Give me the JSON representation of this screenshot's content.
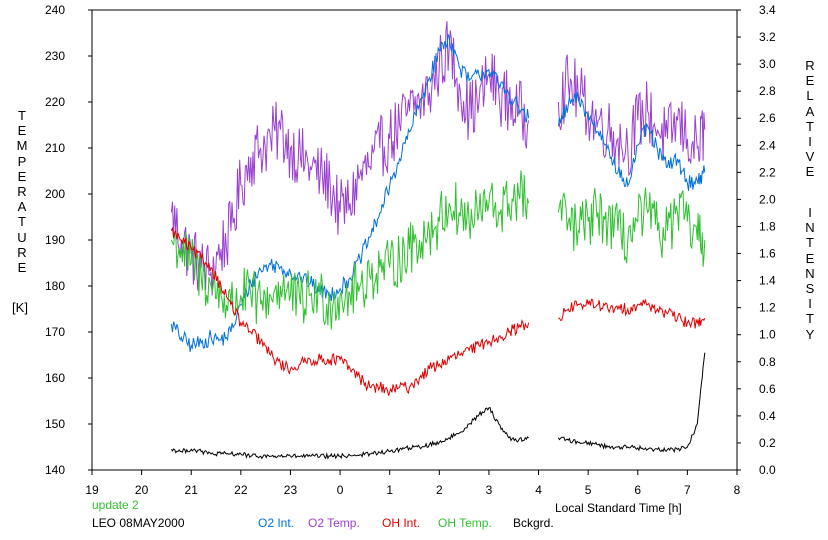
{
  "chart_data": {
    "type": "line",
    "left_axis": {
      "title_letters": [
        "T",
        "E",
        "M",
        "P",
        "E",
        "R",
        "A",
        "T",
        "U",
        "R",
        "E"
      ],
      "unit": "[K]",
      "ticks": [
        140,
        150,
        160,
        170,
        180,
        190,
        200,
        210,
        220,
        230,
        240
      ],
      "range": [
        140,
        240
      ]
    },
    "right_axis": {
      "title_word1": [
        "R",
        "E",
        "L",
        "A",
        "T",
        "I",
        "V",
        "E"
      ],
      "title_word2": [
        "I",
        "N",
        "T",
        "E",
        "N",
        "S",
        "I",
        "T",
        "Y"
      ],
      "ticks": [
        "0.0",
        "0.2",
        "0.4",
        "0.6",
        "0.8",
        "1.0",
        "1.2",
        "1.4",
        "1.6",
        "1.8",
        "2.0",
        "2.2",
        "2.4",
        "2.6",
        "2.8",
        "3.0",
        "3.2",
        "3.4"
      ],
      "range": [
        0.0,
        3.4
      ]
    },
    "x_axis": {
      "label": "Local Standard Time [h]",
      "ticks": [
        "19",
        "20",
        "21",
        "22",
        "23",
        "0",
        "1",
        "2",
        "3",
        "4",
        "5",
        "6",
        "7",
        "8"
      ],
      "range_hours_since_19": [
        0,
        13
      ]
    },
    "legend": [
      {
        "name": "O2 Int.",
        "color": "#0070e0"
      },
      {
        "name": "O2 Temp.",
        "color": "#9a40d0"
      },
      {
        "name": "OH Int.",
        "color": "#e00000"
      },
      {
        "name": "OH Temp.",
        "color": "#30c030"
      },
      {
        "name": "Bckgrd.",
        "color": "#000000"
      }
    ],
    "annotations": {
      "update": "update 2",
      "station": "LEO 08MAY2000"
    },
    "series": [
      {
        "name": "O2 Temp.",
        "axis": "left",
        "color": "#9a40d0",
        "x": [
          20.6,
          20.8,
          21.0,
          21.2,
          21.4,
          21.6,
          21.8,
          22.0,
          22.2,
          22.4,
          22.6,
          22.8,
          23.0,
          23.2,
          23.4,
          23.6,
          23.8,
          24.0,
          24.2,
          24.4,
          24.6,
          24.8,
          25.0,
          25.2,
          25.4,
          25.6,
          25.8,
          26.0,
          26.2,
          26.4,
          26.6,
          26.8,
          27.0,
          27.2,
          27.4,
          27.6,
          27.8,
          null,
          28.4,
          28.6,
          28.8,
          29.0,
          29.2,
          29.4,
          29.6,
          29.8,
          30.0,
          30.2,
          30.4,
          30.6,
          30.8,
          31.0,
          31.2,
          31.35
        ],
        "y": [
          196,
          190,
          187,
          184,
          183,
          188,
          192,
          202,
          208,
          210,
          212,
          214,
          210,
          208,
          206,
          204,
          202,
          196,
          198,
          204,
          206,
          210,
          212,
          215,
          218,
          220,
          222,
          228,
          232,
          224,
          218,
          220,
          226,
          222,
          220,
          218,
          216,
          null,
          220,
          224,
          222,
          218,
          216,
          214,
          212,
          210,
          216,
          218,
          214,
          212,
          216,
          212,
          210,
          214
        ]
      },
      {
        "name": "O2 Int.",
        "axis": "right",
        "color": "#0070e0",
        "x": [
          20.6,
          20.8,
          21.0,
          21.2,
          21.4,
          21.6,
          21.8,
          22.0,
          22.2,
          22.4,
          22.6,
          22.8,
          23.0,
          23.2,
          23.4,
          23.6,
          23.8,
          24.0,
          24.2,
          24.4,
          24.6,
          24.8,
          25.0,
          25.2,
          25.4,
          25.6,
          25.8,
          26.0,
          26.2,
          26.4,
          26.6,
          26.8,
          27.0,
          27.2,
          27.4,
          27.6,
          27.8,
          null,
          28.4,
          28.6,
          28.8,
          29.0,
          29.2,
          29.4,
          29.6,
          29.8,
          30.0,
          30.2,
          30.4,
          30.6,
          30.8,
          31.0,
          31.2,
          31.35
        ],
        "y": [
          1.08,
          0.98,
          0.92,
          0.94,
          0.98,
          0.96,
          1.02,
          1.22,
          1.38,
          1.48,
          1.52,
          1.5,
          1.46,
          1.42,
          1.38,
          1.32,
          1.3,
          1.34,
          1.42,
          1.56,
          1.72,
          1.9,
          2.1,
          2.3,
          2.5,
          2.7,
          2.9,
          3.1,
          3.2,
          2.98,
          2.88,
          2.92,
          2.96,
          2.85,
          2.78,
          2.68,
          2.6,
          null,
          2.54,
          2.7,
          2.74,
          2.62,
          2.5,
          2.4,
          2.2,
          2.1,
          2.4,
          2.54,
          2.36,
          2.24,
          2.3,
          2.12,
          2.14,
          2.2
        ]
      },
      {
        "name": "OH Temp.",
        "axis": "left",
        "color": "#30c030",
        "x": [
          20.6,
          20.8,
          21.0,
          21.2,
          21.4,
          21.6,
          21.8,
          22.0,
          22.2,
          22.4,
          22.6,
          22.8,
          23.0,
          23.2,
          23.4,
          23.6,
          23.8,
          24.0,
          24.2,
          24.4,
          24.6,
          24.8,
          25.0,
          25.2,
          25.4,
          25.6,
          25.8,
          26.0,
          26.2,
          26.4,
          26.6,
          26.8,
          27.0,
          27.2,
          27.4,
          27.6,
          27.8,
          null,
          28.4,
          28.6,
          28.8,
          29.0,
          29.2,
          29.4,
          29.6,
          29.8,
          30.0,
          30.2,
          30.4,
          30.6,
          30.8,
          31.0,
          31.2,
          31.35
        ],
        "y": [
          190,
          188,
          185,
          182,
          180,
          178,
          176,
          178,
          178,
          176,
          178,
          180,
          178,
          176,
          178,
          178,
          176,
          178,
          178,
          180,
          182,
          184,
          184,
          186,
          188,
          190,
          192,
          194,
          198,
          196,
          194,
          196,
          198,
          196,
          198,
          200,
          198,
          null,
          196,
          194,
          192,
          194,
          196,
          194,
          192,
          190,
          194,
          196,
          192,
          192,
          196,
          194,
          190,
          190
        ]
      },
      {
        "name": "OH Int.",
        "axis": "left",
        "color": "#e00000",
        "x": [
          20.6,
          20.8,
          21.0,
          21.2,
          21.4,
          21.6,
          21.8,
          22.0,
          22.2,
          22.4,
          22.6,
          22.8,
          23.0,
          23.2,
          23.4,
          23.6,
          23.8,
          24.0,
          24.2,
          24.4,
          24.6,
          24.8,
          25.0,
          25.2,
          25.4,
          25.6,
          25.8,
          26.0,
          26.2,
          26.4,
          26.6,
          26.8,
          27.0,
          27.2,
          27.4,
          27.6,
          27.8,
          null,
          28.4,
          28.6,
          28.8,
          29.0,
          29.2,
          29.4,
          29.6,
          29.8,
          30.0,
          30.2,
          30.4,
          30.6,
          30.8,
          31.0,
          31.2,
          31.35
        ],
        "y": [
          192,
          190,
          188,
          186,
          184,
          180,
          176,
          172,
          170,
          168,
          165,
          163,
          162,
          163,
          164,
          164,
          164,
          164,
          162,
          160,
          158,
          158,
          157,
          158,
          158,
          160,
          162,
          163,
          164,
          165,
          166,
          167,
          168,
          169,
          170,
          171,
          172,
          null,
          173,
          175,
          176,
          176,
          176,
          175,
          175,
          175,
          176,
          176,
          175,
          174,
          173,
          172,
          172,
          173
        ]
      },
      {
        "name": "Bckgrd.",
        "axis": "left",
        "color": "#000000",
        "x": [
          20.6,
          20.8,
          21.0,
          21.2,
          21.4,
          21.6,
          21.8,
          22.0,
          22.2,
          22.4,
          22.6,
          22.8,
          23.0,
          23.2,
          23.4,
          23.6,
          23.8,
          24.0,
          24.2,
          24.4,
          24.6,
          24.8,
          25.0,
          25.2,
          25.4,
          25.6,
          25.8,
          26.0,
          26.2,
          26.4,
          26.6,
          26.8,
          27.0,
          27.2,
          27.4,
          27.6,
          27.8,
          null,
          28.4,
          28.6,
          28.8,
          29.0,
          29.2,
          29.4,
          29.6,
          29.8,
          30.0,
          30.2,
          30.4,
          30.6,
          30.8,
          31.0,
          31.2,
          31.35
        ],
        "y": [
          144.5,
          144.0,
          144.5,
          144.0,
          143.5,
          143.5,
          143.5,
          143.5,
          143.0,
          143.0,
          143.0,
          143.0,
          143.0,
          143.0,
          143.0,
          143.0,
          143.0,
          143.0,
          143.2,
          143.3,
          143.5,
          143.8,
          144.0,
          144.5,
          144.8,
          145.0,
          145.5,
          146.0,
          147.0,
          148.0,
          150.0,
          152.0,
          153.5,
          150.0,
          147.0,
          146.5,
          147.0,
          null,
          147.0,
          146.5,
          146.0,
          146.0,
          145.5,
          145.0,
          145.0,
          145.0,
          144.8,
          144.5,
          144.5,
          144.5,
          144.5,
          145.0,
          150.0,
          165.5
        ]
      }
    ]
  }
}
